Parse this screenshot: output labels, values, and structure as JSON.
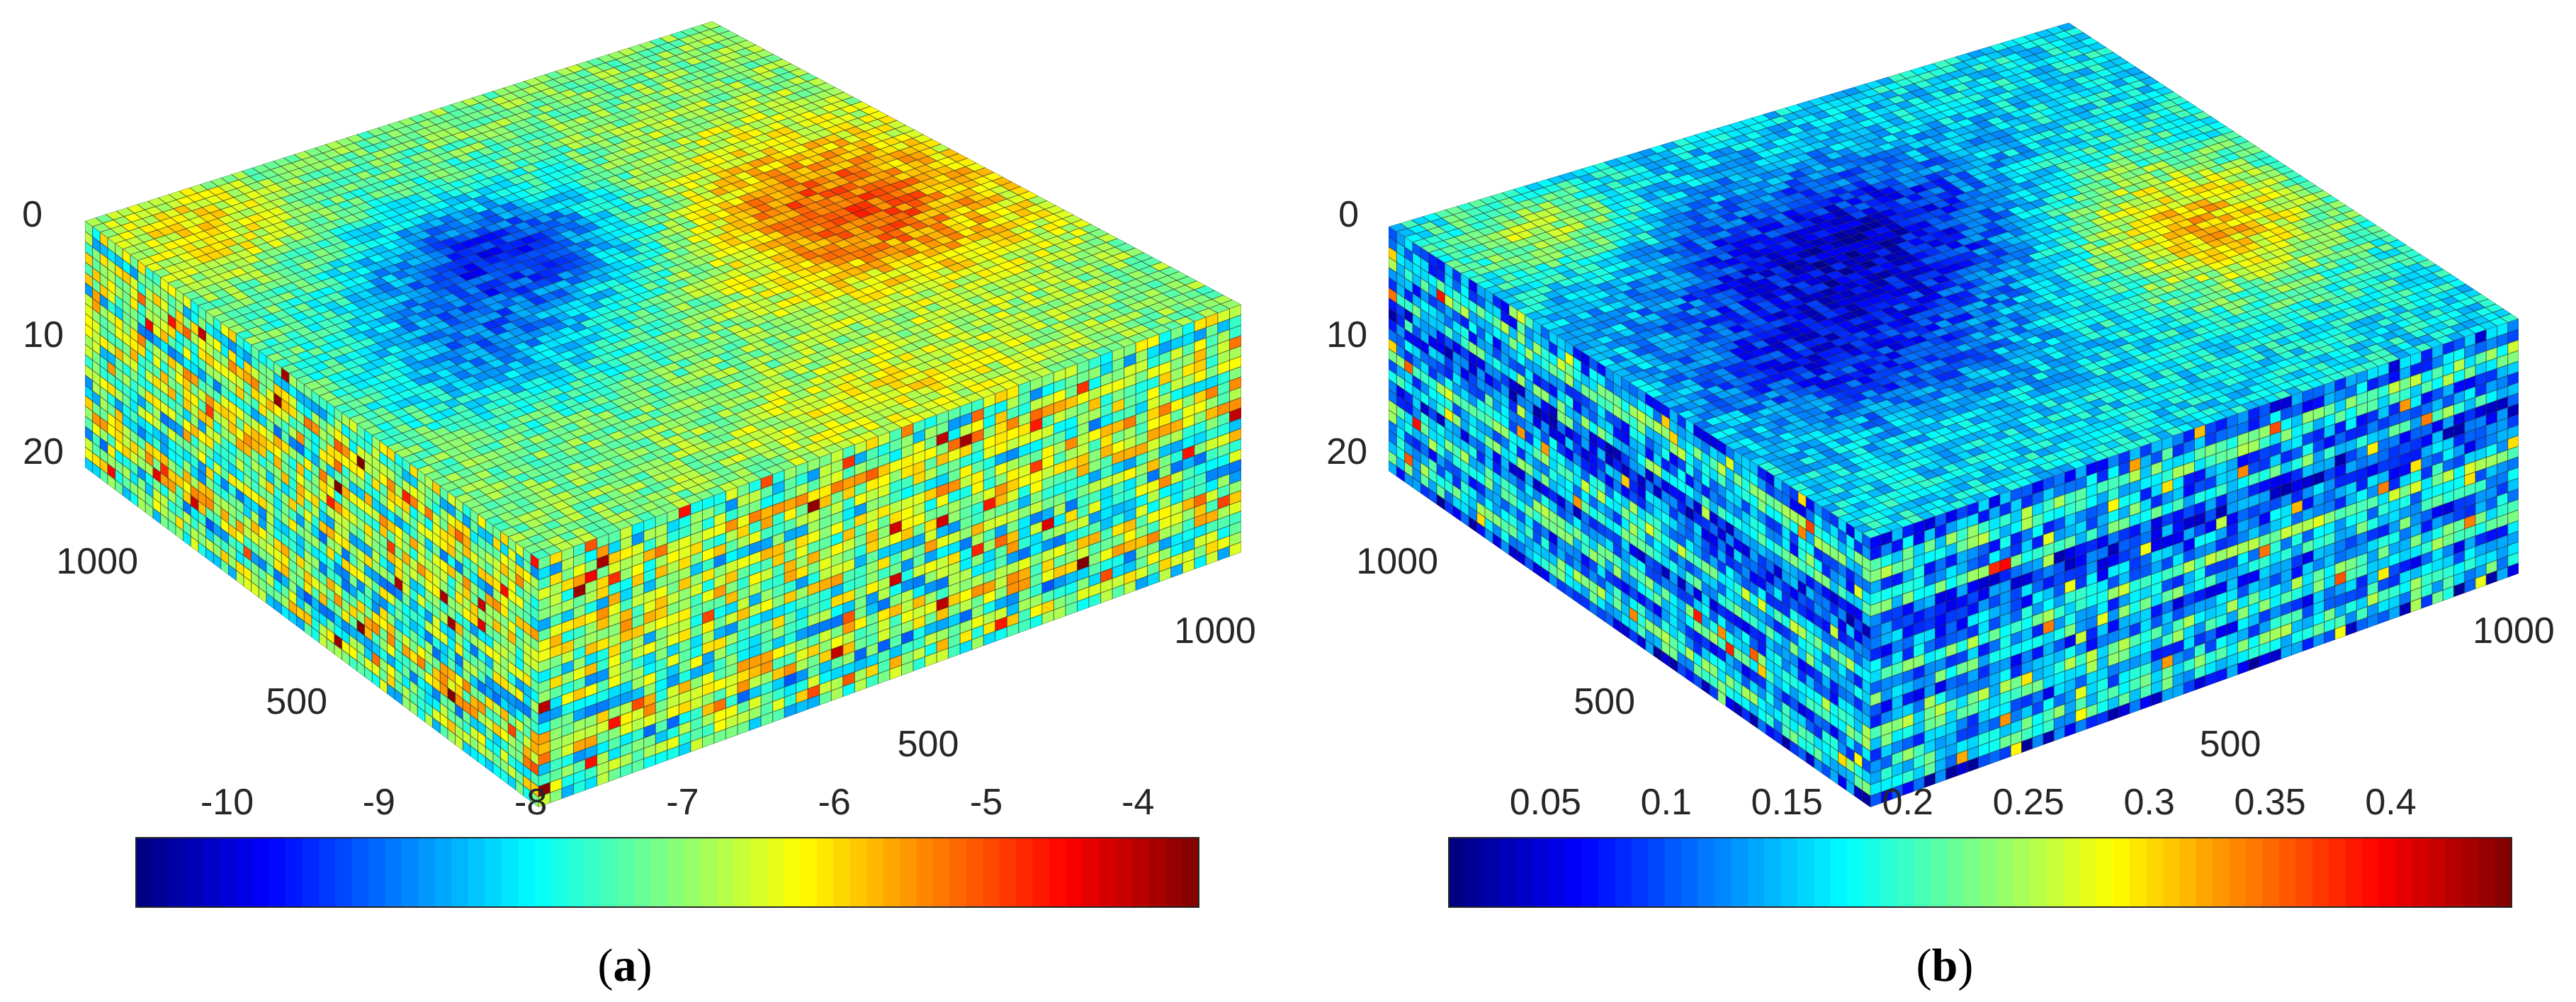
{
  "chart_data": [
    {
      "type": "3d-block-heatmap",
      "panel_label": "a",
      "z_ticks": [
        "0",
        "10",
        "20"
      ],
      "y_ticks": [
        "1000",
        "500"
      ],
      "x_ticks": [
        "500",
        "1000"
      ],
      "colorbar": {
        "colormap": "jet",
        "range": [
          -10.6,
          -3.6
        ],
        "ticks": [
          "-10",
          "-9",
          "-8",
          "-7",
          "-6",
          "-5",
          "-4"
        ],
        "tick_values": [
          -10,
          -9,
          -8,
          -7,
          -6,
          -5,
          -4
        ]
      },
      "value_range": [
        -10.6,
        -3.6
      ],
      "top_low_region": "center-left",
      "top_high_region": "right"
    },
    {
      "type": "3d-block-heatmap",
      "panel_label": "b",
      "z_ticks": [
        "0",
        "10",
        "20"
      ],
      "y_ticks": [
        "1000",
        "500"
      ],
      "x_ticks": [
        "500",
        "1000"
      ],
      "colorbar": {
        "colormap": "jet",
        "range": [
          0.01,
          0.45
        ],
        "ticks": [
          "0.05",
          "0.1",
          "0.15",
          "0.2",
          "0.25",
          "0.3",
          "0.35",
          "0.4"
        ],
        "tick_values": [
          0.05,
          0.1,
          0.15,
          0.2,
          0.25,
          0.3,
          0.35,
          0.4
        ]
      },
      "value_range": [
        0.01,
        0.45
      ],
      "top_low_region": "center",
      "top_high_region": "right"
    }
  ],
  "captions": {
    "a_open": "(",
    "a_letter": "a",
    "a_close": ")",
    "b_open": "(",
    "b_letter": "b",
    "b_close": ")"
  }
}
